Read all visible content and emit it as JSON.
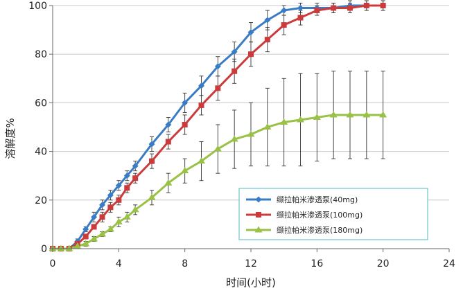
{
  "chart_data": {
    "type": "line",
    "xlabel": "时间(小时)",
    "ylabel": "溶解度%",
    "xlim": [
      0,
      24
    ],
    "ylim": [
      0,
      100
    ],
    "xticks": [
      "0",
      "4",
      "8",
      "12",
      "16",
      "20",
      "24"
    ],
    "yticks": [
      "0",
      "20",
      "40",
      "60",
      "80",
      "100"
    ],
    "grid": "horizontal",
    "legend_position": "bottom-right",
    "series": [
      {
        "name": "缬拉帕米渗透泵(40mg)",
        "color": "#3a7cc4",
        "marker": "diamond",
        "x": [
          0,
          0.5,
          1,
          1.5,
          2,
          2.5,
          3,
          3.5,
          4,
          4.5,
          5,
          6,
          7,
          8,
          9,
          10,
          11,
          12,
          13,
          14,
          15,
          16,
          17,
          18,
          19,
          20
        ],
        "y": [
          0,
          0,
          0,
          3,
          8,
          13,
          18,
          22,
          26,
          30,
          34,
          43,
          51,
          60,
          67,
          75,
          81,
          89,
          94,
          98,
          99,
          99,
          99,
          100,
          100,
          100
        ],
        "err": [
          0,
          0,
          0,
          1,
          1,
          2,
          2,
          2,
          2,
          2,
          2,
          3,
          3,
          4,
          4,
          4,
          4,
          4,
          4,
          2,
          2,
          2,
          2,
          2,
          2,
          2
        ]
      },
      {
        "name": "缬拉帕米渗透泵(100mg)",
        "color": "#cc3b3b",
        "marker": "square",
        "x": [
          0,
          0.5,
          1,
          1.5,
          2,
          2.5,
          3,
          3.5,
          4,
          4.5,
          5,
          6,
          7,
          8,
          9,
          10,
          11,
          12,
          13,
          14,
          15,
          16,
          17,
          18,
          19,
          20
        ],
        "y": [
          0,
          0,
          0,
          2,
          5,
          9,
          13,
          17,
          20,
          25,
          29,
          36,
          44,
          51,
          59,
          66,
          73,
          80,
          86,
          92,
          95,
          98,
          99,
          99,
          100,
          100
        ],
        "err": [
          0,
          0,
          0,
          1,
          1,
          1,
          2,
          2,
          2,
          2,
          2,
          3,
          3,
          4,
          4,
          5,
          5,
          5,
          5,
          4,
          3,
          2,
          2,
          2,
          2,
          2
        ]
      },
      {
        "name": "缬拉帕米渗透泵(180mg)",
        "color": "#98c145",
        "marker": "triangle",
        "x": [
          0,
          0.5,
          1,
          1.5,
          2,
          2.5,
          3,
          3.5,
          4,
          4.5,
          5,
          6,
          7,
          8,
          9,
          10,
          11,
          12,
          13,
          14,
          15,
          16,
          17,
          18,
          19,
          20
        ],
        "y": [
          0,
          0,
          0,
          1,
          2,
          4,
          6,
          8,
          11,
          13,
          16,
          21,
          27,
          32,
          36,
          41,
          45,
          47,
          50,
          52,
          53,
          54,
          55,
          55,
          55,
          55
        ],
        "err": [
          0,
          0,
          0,
          1,
          1,
          1,
          1,
          1,
          2,
          2,
          2,
          3,
          4,
          5,
          8,
          10,
          12,
          13,
          16,
          18,
          19,
          18,
          18,
          18,
          18,
          18
        ]
      }
    ]
  }
}
